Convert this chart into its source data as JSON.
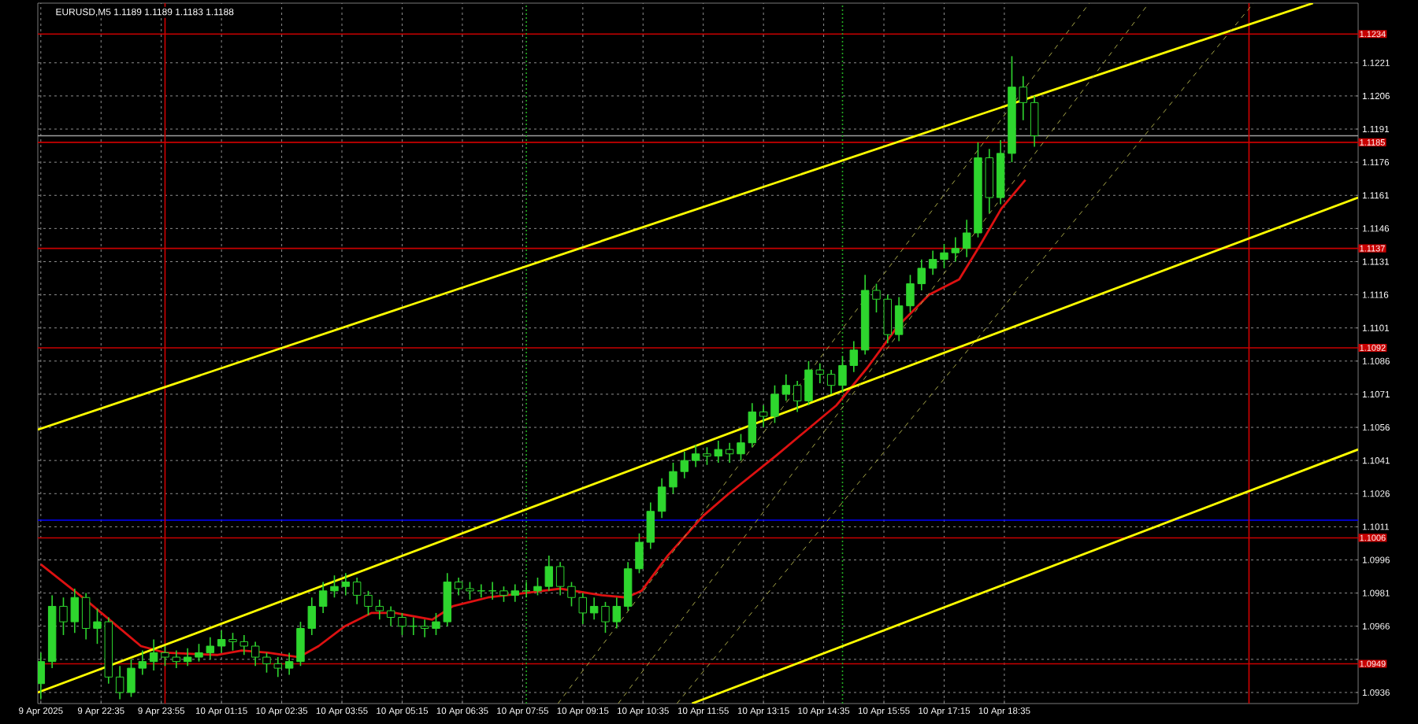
{
  "chart_data": {
    "type": "candlestick",
    "title": "EURUSD,M5 1.1189 1.1189 1.1183 1.1188",
    "color": "#2ed62e",
    "x": [
      "2025-04-09T21:15",
      "2025-04-09T21:30",
      "2025-04-09T21:45",
      "2025-04-09T22:00",
      "2025-04-09T22:15",
      "2025-04-09T22:30",
      "2025-04-09T22:45",
      "2025-04-09T23:00",
      "2025-04-09T23:15",
      "2025-04-09T23:30",
      "2025-04-09T23:45",
      "2025-04-10T00:00",
      "2025-04-10T00:15",
      "2025-04-10T00:30",
      "2025-04-10T00:45",
      "2025-04-10T01:00",
      "2025-04-10T01:15",
      "2025-04-10T01:30",
      "2025-04-10T01:45",
      "2025-04-10T02:00",
      "2025-04-10T02:15",
      "2025-04-10T02:30",
      "2025-04-10T02:45",
      "2025-04-10T03:00",
      "2025-04-10T03:15",
      "2025-04-10T03:30",
      "2025-04-10T03:45",
      "2025-04-10T04:00",
      "2025-04-10T04:15",
      "2025-04-10T04:30",
      "2025-04-10T04:45",
      "2025-04-10T05:00",
      "2025-04-10T05:15",
      "2025-04-10T05:30",
      "2025-04-10T05:45",
      "2025-04-10T06:00",
      "2025-04-10T06:15",
      "2025-04-10T06:30",
      "2025-04-10T06:45",
      "2025-04-10T07:00",
      "2025-04-10T07:15",
      "2025-04-10T07:30",
      "2025-04-10T07:45",
      "2025-04-10T08:00",
      "2025-04-10T08:15",
      "2025-04-10T08:30",
      "2025-04-10T08:45",
      "2025-04-10T09:00",
      "2025-04-10T09:15",
      "2025-04-10T09:30",
      "2025-04-10T09:45",
      "2025-04-10T10:00",
      "2025-04-10T10:15",
      "2025-04-10T10:30",
      "2025-04-10T10:45",
      "2025-04-10T11:00",
      "2025-04-10T11:15",
      "2025-04-10T11:30",
      "2025-04-10T11:45",
      "2025-04-10T12:00",
      "2025-04-10T12:15",
      "2025-04-10T12:30",
      "2025-04-10T12:45",
      "2025-04-10T13:00",
      "2025-04-10T13:15",
      "2025-04-10T13:30",
      "2025-04-10T13:45",
      "2025-04-10T14:00",
      "2025-04-10T14:15",
      "2025-04-10T14:30",
      "2025-04-10T14:45",
      "2025-04-10T15:00",
      "2025-04-10T15:15",
      "2025-04-10T15:30",
      "2025-04-10T15:45",
      "2025-04-10T16:00",
      "2025-04-10T16:15",
      "2025-04-10T16:30",
      "2025-04-10T16:45",
      "2025-04-10T17:00",
      "2025-04-10T17:15",
      "2025-04-10T17:30",
      "2025-04-10T17:45",
      "2025-04-10T18:00",
      "2025-04-10T18:15",
      "2025-04-10T18:30",
      "2025-04-10T18:45",
      "2025-04-10T19:00",
      "2025-04-10T19:15"
    ],
    "ohlc": [
      [
        1.094,
        1.0954,
        1.0933,
        1.095
      ],
      [
        1.095,
        1.098,
        1.0947,
        1.0975
      ],
      [
        1.0975,
        1.0979,
        1.0962,
        1.0968
      ],
      [
        1.0968,
        1.0983,
        1.0963,
        1.0979
      ],
      [
        1.0979,
        1.0981,
        1.096,
        1.0965
      ],
      [
        1.0965,
        1.0974,
        1.0958,
        1.0968
      ],
      [
        1.0968,
        1.097,
        1.094,
        1.0943
      ],
      [
        1.0943,
        1.0948,
        1.0933,
        1.0936
      ],
      [
        1.0936,
        1.0951,
        1.0934,
        1.0947
      ],
      [
        1.0947,
        1.0955,
        1.0944,
        1.095
      ],
      [
        1.095,
        1.096,
        1.0946,
        1.0954
      ],
      [
        1.0954,
        1.0957,
        1.0948,
        1.0952
      ],
      [
        1.0952,
        1.0955,
        1.0947,
        1.095
      ],
      [
        1.095,
        1.0956,
        1.0948,
        1.0952
      ],
      [
        1.0952,
        1.0958,
        1.095,
        1.0954
      ],
      [
        1.0954,
        1.0961,
        1.0951,
        1.0957
      ],
      [
        1.0957,
        1.0964,
        1.0954,
        1.096
      ],
      [
        1.096,
        1.0963,
        1.0955,
        1.0959
      ],
      [
        1.0959,
        1.0962,
        1.0953,
        1.0957
      ],
      [
        1.0957,
        1.0959,
        1.0948,
        1.0952
      ],
      [
        1.0952,
        1.0954,
        1.0945,
        1.0949
      ],
      [
        1.0949,
        1.0952,
        1.0943,
        1.0947
      ],
      [
        1.0947,
        1.0954,
        1.0944,
        1.095
      ],
      [
        1.095,
        1.0968,
        1.0948,
        1.0965
      ],
      [
        1.0965,
        1.0979,
        1.0962,
        1.0975
      ],
      [
        1.0975,
        1.0986,
        1.0972,
        1.0982
      ],
      [
        1.0982,
        1.0989,
        1.0979,
        1.0984
      ],
      [
        1.0984,
        1.099,
        1.098,
        1.0986
      ],
      [
        1.0986,
        1.0988,
        1.0976,
        1.098
      ],
      [
        1.098,
        1.0982,
        1.0971,
        1.0975
      ],
      [
        1.0975,
        1.0978,
        1.0969,
        1.0973
      ],
      [
        1.0973,
        1.0975,
        1.0966,
        1.097
      ],
      [
        1.097,
        1.0972,
        1.0962,
        1.0966
      ],
      [
        1.0966,
        1.097,
        1.0962,
        1.0966
      ],
      [
        1.0966,
        1.0969,
        1.0961,
        1.0965
      ],
      [
        1.0965,
        1.0972,
        1.0962,
        1.0968
      ],
      [
        1.0968,
        1.099,
        1.0966,
        1.0986
      ],
      [
        1.0986,
        1.0988,
        1.098,
        1.0983
      ],
      [
        1.0983,
        1.0986,
        1.0978,
        1.0982
      ],
      [
        1.0982,
        1.0985,
        1.0979,
        1.0982
      ],
      [
        1.0982,
        1.0986,
        1.0978,
        1.0982
      ],
      [
        1.0982,
        1.0984,
        1.0977,
        1.098
      ],
      [
        1.098,
        1.0985,
        1.0977,
        1.0982
      ],
      [
        1.0982,
        1.0986,
        1.0979,
        1.0982
      ],
      [
        1.0982,
        1.0988,
        1.098,
        1.0984
      ],
      [
        1.0984,
        1.0998,
        1.0982,
        1.0993
      ],
      [
        1.0993,
        1.0995,
        1.098,
        1.0984
      ],
      [
        1.0984,
        1.0986,
        1.0975,
        1.0979
      ],
      [
        1.0979,
        1.0981,
        1.0967,
        1.0972
      ],
      [
        1.0972,
        1.0979,
        1.0969,
        1.0975
      ],
      [
        1.0975,
        1.0977,
        1.0963,
        1.0968
      ],
      [
        1.0968,
        1.0979,
        1.0965,
        1.0975
      ],
      [
        1.0975,
        1.0995,
        1.0973,
        1.0992
      ],
      [
        1.0992,
        1.1008,
        1.099,
        1.1004
      ],
      [
        1.1004,
        1.1022,
        1.1001,
        1.1018
      ],
      [
        1.1018,
        1.1033,
        1.1015,
        1.1029
      ],
      [
        1.1029,
        1.104,
        1.1026,
        1.1036
      ],
      [
        1.1036,
        1.1045,
        1.1033,
        1.1041
      ],
      [
        1.1041,
        1.1048,
        1.1038,
        1.1044
      ],
      [
        1.1044,
        1.1047,
        1.1039,
        1.1043
      ],
      [
        1.1043,
        1.105,
        1.104,
        1.1046
      ],
      [
        1.1046,
        1.1049,
        1.104,
        1.1044
      ],
      [
        1.1044,
        1.1053,
        1.1041,
        1.1049
      ],
      [
        1.1049,
        1.1067,
        1.1047,
        1.1063
      ],
      [
        1.1063,
        1.1066,
        1.1056,
        1.1061
      ],
      [
        1.1061,
        1.1075,
        1.1058,
        1.1071
      ],
      [
        1.1071,
        1.108,
        1.1068,
        1.1075
      ],
      [
        1.1075,
        1.1077,
        1.1063,
        1.1068
      ],
      [
        1.1068,
        1.1086,
        1.1066,
        1.1082
      ],
      [
        1.1082,
        1.1085,
        1.1076,
        1.108
      ],
      [
        1.108,
        1.1082,
        1.1071,
        1.1075
      ],
      [
        1.1075,
        1.1088,
        1.1072,
        1.1084
      ],
      [
        1.1084,
        1.1095,
        1.1081,
        1.1091
      ],
      [
        1.1091,
        1.1125,
        1.1089,
        1.1118
      ],
      [
        1.1118,
        1.1121,
        1.1108,
        1.1114
      ],
      [
        1.1114,
        1.1116,
        1.1094,
        1.1098
      ],
      [
        1.1098,
        1.1115,
        1.1095,
        1.1111
      ],
      [
        1.1111,
        1.1125,
        1.1108,
        1.1121
      ],
      [
        1.1121,
        1.1132,
        1.1118,
        1.1128
      ],
      [
        1.1128,
        1.1136,
        1.1125,
        1.1132
      ],
      [
        1.1132,
        1.1139,
        1.1128,
        1.1135
      ],
      [
        1.1135,
        1.1142,
        1.1131,
        1.1137
      ],
      [
        1.1137,
        1.115,
        1.1133,
        1.1144
      ],
      [
        1.1144,
        1.1185,
        1.1142,
        1.1178
      ],
      [
        1.1178,
        1.1182,
        1.1153,
        1.116
      ],
      [
        1.116,
        1.1186,
        1.1157,
        1.118
      ],
      [
        1.118,
        1.1224,
        1.1176,
        1.121
      ],
      [
        1.121,
        1.1215,
        1.1195,
        1.1203
      ],
      [
        1.1203,
        1.1206,
        1.1183,
        1.1188
      ]
    ],
    "series": [
      {
        "type": "line",
        "color": "#dd1111",
        "line_style": "solid",
        "x": [
          "2025-04-09T21:15",
          "2025-04-09T22:18",
          "2025-04-09T22:53",
          "2025-04-09T23:28",
          "2025-04-10T00:00",
          "2025-04-10T01:10",
          "2025-04-10T01:42",
          "2025-04-10T02:17",
          "2025-04-10T02:58",
          "2025-04-10T03:24",
          "2025-04-10T03:59",
          "2025-04-10T04:34",
          "2025-04-10T05:06",
          "2025-04-10T05:55",
          "2025-04-10T06:22",
          "2025-04-10T07:09",
          "2025-04-10T07:58",
          "2025-04-10T08:45",
          "2025-04-10T09:40",
          "2025-04-10T10:13",
          "2025-04-10T10:33",
          "2025-04-10T11:08",
          "2025-04-10T11:55",
          "2025-04-10T12:29",
          "2025-04-10T13:31",
          "2025-04-10T14:52",
          "2025-04-10T15:33",
          "2025-04-10T16:14",
          "2025-04-10T16:55",
          "2025-04-10T17:35",
          "2025-04-10T18:02",
          "2025-04-10T18:31",
          "2025-04-10T19:03"
        ],
        "values": [
          1.0994,
          1.0977,
          1.0967,
          1.0957,
          1.0954,
          1.0953,
          1.0955,
          1.0954,
          1.0952,
          1.0957,
          1.0966,
          1.0972,
          1.0972,
          1.0969,
          1.0975,
          1.0979,
          1.0981,
          1.0983,
          1.098,
          1.0979,
          1.0982,
          1.0998,
          1.1016,
          1.1026,
          1.1043,
          1.1066,
          1.1083,
          1.1102,
          1.1116,
          1.1123,
          1.1138,
          1.1155,
          1.1168
        ]
      },
      {
        "type": "line",
        "color": "#ffff00",
        "line_style": "solid",
        "x": [
          "2025-04-09T21:11",
          "2025-04-11T01:25"
        ],
        "values": [
          1.1055,
          1.1248
        ]
      },
      {
        "type": "line",
        "color": "#ffff00",
        "line_style": "solid",
        "x": [
          "2025-04-09T21:11",
          "2025-04-11T02:25"
        ],
        "values": [
          1.0936,
          1.116
        ]
      },
      {
        "type": "line",
        "color": "#ffff00",
        "line_style": "solid",
        "x": [
          "2025-04-10T11:40",
          "2025-04-11T02:25"
        ],
        "values": [
          1.0931,
          1.1046
        ]
      },
      {
        "type": "line",
        "color": "#a8a848",
        "line_style": "dashed",
        "x": [
          "2025-04-10T08:42",
          "2025-04-10T20:28"
        ],
        "values": [
          1.0931,
          1.1248
        ]
      },
      {
        "type": "line",
        "color": "#a8a848",
        "line_style": "dashed",
        "x": [
          "2025-04-10T10:02",
          "2025-04-10T21:47"
        ],
        "values": [
          1.0931,
          1.1248
        ]
      },
      {
        "type": "line",
        "color": "#a8a848",
        "line_style": "dashed",
        "x": [
          "2025-04-10T11:20",
          "2025-04-11T00:06"
        ],
        "values": [
          1.0931,
          1.1248
        ]
      }
    ],
    "xlim": [
      "2025-04-09T21:11",
      "2025-04-11T02:25"
    ],
    "ylim": [
      1.0931,
      1.1248
    ],
    "xticks": [
      {
        "value": "2025-04-09T21:15",
        "label": "9 Apr 2025"
      },
      {
        "value": "2025-04-09T22:35",
        "label": "9 Apr 22:35"
      },
      {
        "value": "2025-04-09T23:55",
        "label": "9 Apr 23:55"
      },
      {
        "value": "2025-04-10T01:15",
        "label": "10 Apr 01:15"
      },
      {
        "value": "2025-04-10T02:35",
        "label": "10 Apr 02:35"
      },
      {
        "value": "2025-04-10T03:55",
        "label": "10 Apr 03:55"
      },
      {
        "value": "2025-04-10T05:15",
        "label": "10 Apr 05:15"
      },
      {
        "value": "2025-04-10T06:35",
        "label": "10 Apr 06:35"
      },
      {
        "value": "2025-04-10T07:55",
        "label": "10 Apr 07:55"
      },
      {
        "value": "2025-04-10T09:15",
        "label": "10 Apr 09:15"
      },
      {
        "value": "2025-04-10T10:35",
        "label": "10 Apr 10:35"
      },
      {
        "value": "2025-04-10T11:55",
        "label": "10 Apr 11:55"
      },
      {
        "value": "2025-04-10T13:15",
        "label": "10 Apr 13:15"
      },
      {
        "value": "2025-04-10T14:35",
        "label": "10 Apr 14:35"
      },
      {
        "value": "2025-04-10T15:55",
        "label": "10 Apr 15:55"
      },
      {
        "value": "2025-04-10T17:15",
        "label": "10 Apr 17:15"
      },
      {
        "value": "2025-04-10T18:35",
        "label": "10 Apr 18:35"
      }
    ],
    "yticks": [
      1.1221,
      1.1206,
      1.1191,
      1.1176,
      1.1161,
      1.1146,
      1.1131,
      1.1116,
      1.1101,
      1.1086,
      1.1071,
      1.1056,
      1.1041,
      1.1026,
      1.1011,
      1.0996,
      1.0981,
      1.0966,
      {
        "value": 1.0951,
        "label": null
      },
      1.0936
    ],
    "grid": true,
    "ref_lines": [
      {
        "axis": "y",
        "value": 1.1234,
        "label": "1.1234",
        "color": "#c80000"
      },
      {
        "axis": "y",
        "value": 1.1185,
        "label": "1.1185",
        "color": "#c80000"
      },
      {
        "axis": "y",
        "value": 1.1137,
        "label": "1.1137",
        "color": "#c80000"
      },
      {
        "axis": "y",
        "value": 1.1092,
        "label": "1.1092",
        "color": "#c80000"
      },
      {
        "axis": "y",
        "value": 1.1006,
        "label": "1.1006",
        "color": "#c80000"
      },
      {
        "axis": "y",
        "value": 1.0949,
        "label": "1.0949",
        "color": "#c80000"
      },
      {
        "axis": "y",
        "value": 1.1014,
        "color": "#0000ff"
      },
      {
        "axis": "y",
        "value": 1.1188,
        "color": "#9e9e9e"
      },
      {
        "axis": "x",
        "value": "2025-04-10T00:00",
        "color": "#d00000"
      },
      {
        "axis": "x",
        "value": "2025-04-11T00:00",
        "color": "#d00000"
      },
      {
        "axis": "x",
        "value": "2025-04-10T08:00",
        "color": "#22aa22",
        "line_style": "dotted"
      },
      {
        "axis": "x",
        "value": "2025-04-10T15:00",
        "color": "#22aa22",
        "line_style": "dotted"
      }
    ]
  }
}
